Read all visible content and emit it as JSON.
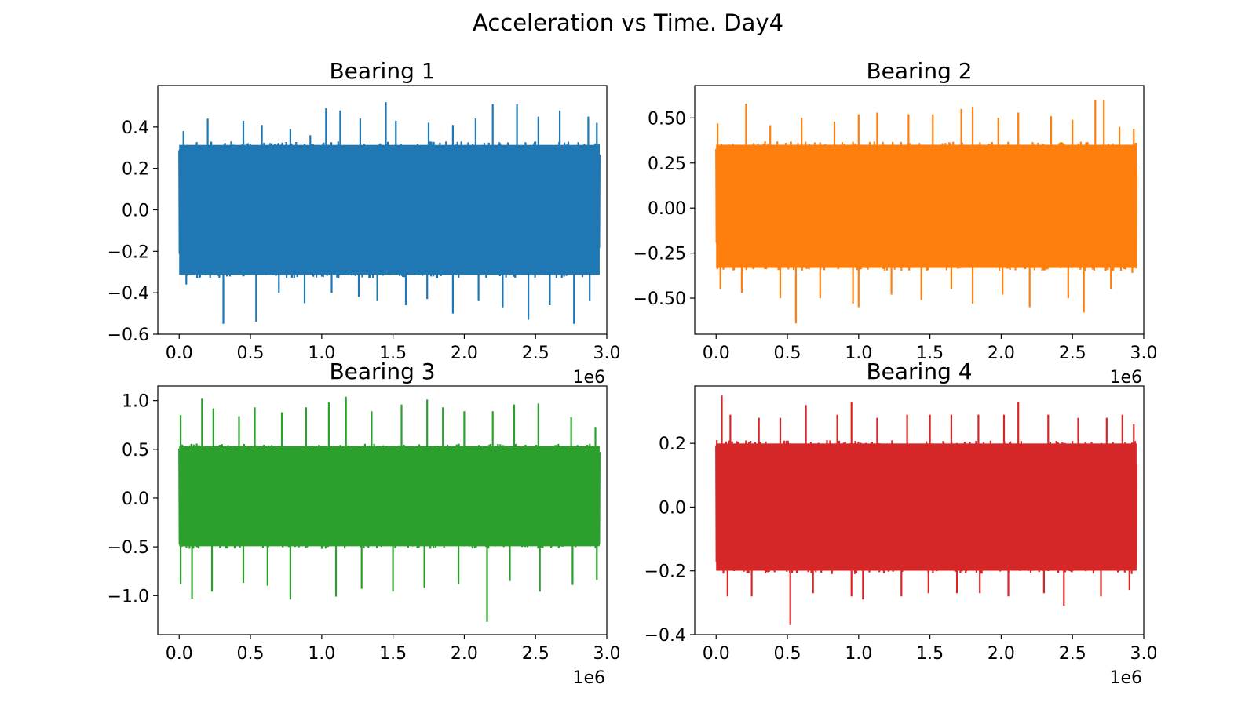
{
  "title": "Acceleration vs Time. Day4",
  "chart_data": [
    {
      "type": "line",
      "title": "Bearing 1",
      "color": "#1f77b4",
      "xlim": [
        -0.15,
        3.0
      ],
      "ylim": [
        -0.6,
        0.6
      ],
      "x_ticks": [
        0.0,
        0.5,
        1.0,
        1.5,
        2.0,
        2.5,
        3.0
      ],
      "x_tick_labels": [
        "0.0",
        "0.5",
        "1.0",
        "1.5",
        "2.0",
        "2.5",
        "3.0"
      ],
      "y_ticks": [
        -0.6,
        -0.4,
        -0.2,
        0.0,
        0.2,
        0.4
      ],
      "y_tick_labels": [
        "−0.6",
        "−0.4",
        "−0.2",
        "0.0",
        "0.2",
        "0.4"
      ],
      "x_offset_label": "1e6",
      "series": [
        {
          "x": [
            0.0,
            2.95
          ],
          "band_max": 0.33,
          "band_min": -0.33,
          "peaks": [
            [
              0.03,
              0.38
            ],
            [
              0.2,
              0.44
            ],
            [
              0.45,
              0.43
            ],
            [
              0.58,
              0.41
            ],
            [
              0.78,
              0.39
            ],
            [
              0.92,
              0.36
            ],
            [
              1.03,
              0.49
            ],
            [
              1.13,
              0.48
            ],
            [
              1.27,
              0.44
            ],
            [
              1.45,
              0.52
            ],
            [
              1.52,
              0.43
            ],
            [
              1.75,
              0.42
            ],
            [
              1.92,
              0.41
            ],
            [
              2.08,
              0.44
            ],
            [
              2.2,
              0.51
            ],
            [
              2.37,
              0.51
            ],
            [
              2.52,
              0.45
            ],
            [
              2.67,
              0.48
            ],
            [
              2.87,
              0.45
            ],
            [
              2.93,
              0.42
            ]
          ],
          "troughs": [
            [
              0.05,
              -0.36
            ],
            [
              0.31,
              -0.55
            ],
            [
              0.54,
              -0.54
            ],
            [
              0.7,
              -0.4
            ],
            [
              0.88,
              -0.45
            ],
            [
              1.07,
              -0.4
            ],
            [
              1.26,
              -0.42
            ],
            [
              1.39,
              -0.44
            ],
            [
              1.59,
              -0.46
            ],
            [
              1.74,
              -0.43
            ],
            [
              1.92,
              -0.5
            ],
            [
              2.1,
              -0.44
            ],
            [
              2.27,
              -0.47
            ],
            [
              2.45,
              -0.53
            ],
            [
              2.6,
              -0.46
            ],
            [
              2.77,
              -0.55
            ],
            [
              2.88,
              -0.44
            ]
          ]
        }
      ]
    },
    {
      "type": "line",
      "title": "Bearing 2",
      "color": "#ff7f0e",
      "xlim": [
        -0.15,
        3.0
      ],
      "ylim": [
        -0.7,
        0.68
      ],
      "x_ticks": [
        0.0,
        0.5,
        1.0,
        1.5,
        2.0,
        2.5,
        3.0
      ],
      "x_tick_labels": [
        "0.0",
        "0.5",
        "1.0",
        "1.5",
        "2.0",
        "2.5",
        "3.0"
      ],
      "y_ticks": [
        -0.5,
        -0.25,
        0.0,
        0.25,
        0.5
      ],
      "y_tick_labels": [
        "−0.50",
        "−0.25",
        "0.00",
        "0.25",
        "0.50"
      ],
      "x_offset_label": "1e6",
      "series": [
        {
          "x": [
            0.0,
            2.95
          ],
          "band_max": 0.37,
          "band_min": -0.35,
          "peaks": [
            [
              0.01,
              0.47
            ],
            [
              0.21,
              0.58
            ],
            [
              0.38,
              0.46
            ],
            [
              0.6,
              0.5
            ],
            [
              0.83,
              0.48
            ],
            [
              1.0,
              0.52
            ],
            [
              1.13,
              0.53
            ],
            [
              1.35,
              0.52
            ],
            [
              1.52,
              0.52
            ],
            [
              1.72,
              0.55
            ],
            [
              1.8,
              0.56
            ],
            [
              1.98,
              0.5
            ],
            [
              2.12,
              0.53
            ],
            [
              2.35,
              0.51
            ],
            [
              2.5,
              0.49
            ],
            [
              2.66,
              0.6
            ],
            [
              2.72,
              0.6
            ],
            [
              2.83,
              0.45
            ],
            [
              2.93,
              0.44
            ]
          ],
          "troughs": [
            [
              0.03,
              -0.45
            ],
            [
              0.18,
              -0.47
            ],
            [
              0.45,
              -0.5
            ],
            [
              0.56,
              -0.64
            ],
            [
              0.73,
              -0.5
            ],
            [
              0.96,
              -0.53
            ],
            [
              1.0,
              -0.55
            ],
            [
              1.23,
              -0.48
            ],
            [
              1.44,
              -0.51
            ],
            [
              1.65,
              -0.45
            ],
            [
              1.8,
              -0.53
            ],
            [
              2.01,
              -0.48
            ],
            [
              2.2,
              -0.55
            ],
            [
              2.47,
              -0.5
            ],
            [
              2.58,
              -0.58
            ],
            [
              2.77,
              -0.45
            ],
            [
              2.92,
              -0.36
            ]
          ]
        }
      ]
    },
    {
      "type": "line",
      "title": "Bearing 3",
      "color": "#2ca02c",
      "xlim": [
        -0.15,
        3.0
      ],
      "ylim": [
        -1.4,
        1.15
      ],
      "x_ticks": [
        0.0,
        0.5,
        1.0,
        1.5,
        2.0,
        2.5,
        3.0
      ],
      "x_tick_labels": [
        "0.0",
        "0.5",
        "1.0",
        "1.5",
        "2.0",
        "2.5",
        "3.0"
      ],
      "y_ticks": [
        -1.0,
        -0.5,
        0.0,
        0.5,
        1.0
      ],
      "y_tick_labels": [
        "−1.0",
        "−0.5",
        "0.0",
        "0.5",
        "1.0"
      ],
      "x_offset_label": "1e6",
      "series": [
        {
          "x": [
            0.0,
            2.95
          ],
          "band_max": 0.56,
          "band_min": -0.52,
          "peaks": [
            [
              0.01,
              0.85
            ],
            [
              0.16,
              1.02
            ],
            [
              0.24,
              0.92
            ],
            [
              0.42,
              0.84
            ],
            [
              0.53,
              0.93
            ],
            [
              0.72,
              0.88
            ],
            [
              0.89,
              0.93
            ],
            [
              1.05,
              0.98
            ],
            [
              1.17,
              1.04
            ],
            [
              1.35,
              0.89
            ],
            [
              1.56,
              0.96
            ],
            [
              1.74,
              1.01
            ],
            [
              1.85,
              0.93
            ],
            [
              2.0,
              0.89
            ],
            [
              2.2,
              0.89
            ],
            [
              2.35,
              0.96
            ],
            [
              2.52,
              0.97
            ],
            [
              2.75,
              0.83
            ],
            [
              2.92,
              0.73
            ]
          ],
          "troughs": [
            [
              0.01,
              -0.88
            ],
            [
              0.09,
              -1.03
            ],
            [
              0.23,
              -0.96
            ],
            [
              0.45,
              -0.87
            ],
            [
              0.62,
              -0.9
            ],
            [
              0.78,
              -1.04
            ],
            [
              1.1,
              -1.01
            ],
            [
              1.28,
              -0.93
            ],
            [
              1.5,
              -0.96
            ],
            [
              1.72,
              -0.92
            ],
            [
              1.96,
              -0.88
            ],
            [
              2.16,
              -1.27
            ],
            [
              2.32,
              -0.85
            ],
            [
              2.53,
              -0.96
            ],
            [
              2.76,
              -0.89
            ],
            [
              2.93,
              -0.84
            ]
          ]
        }
      ]
    },
    {
      "type": "line",
      "title": "Bearing 4",
      "color": "#d62728",
      "xlim": [
        -0.15,
        3.0
      ],
      "ylim": [
        -0.4,
        0.38
      ],
      "x_ticks": [
        0.0,
        0.5,
        1.0,
        1.5,
        2.0,
        2.5,
        3.0
      ],
      "x_tick_labels": [
        "0.0",
        "0.5",
        "1.0",
        "1.5",
        "2.0",
        "2.5",
        "3.0"
      ],
      "y_ticks": [
        -0.4,
        -0.2,
        0.0,
        0.2
      ],
      "y_tick_labels": [
        "−0.4",
        "−0.2",
        "0.0",
        "0.2"
      ],
      "x_offset_label": "1e6",
      "series": [
        {
          "x": [
            0.0,
            2.95
          ],
          "band_max": 0.21,
          "band_min": -0.21,
          "peaks": [
            [
              0.04,
              0.35
            ],
            [
              0.1,
              0.29
            ],
            [
              0.3,
              0.28
            ],
            [
              0.45,
              0.28
            ],
            [
              0.63,
              0.32
            ],
            [
              0.85,
              0.29
            ],
            [
              0.95,
              0.33
            ],
            [
              1.13,
              0.28
            ],
            [
              1.34,
              0.29
            ],
            [
              1.5,
              0.29
            ],
            [
              1.65,
              0.29
            ],
            [
              1.84,
              0.29
            ],
            [
              2.02,
              0.29
            ],
            [
              2.12,
              0.33
            ],
            [
              2.33,
              0.29
            ],
            [
              2.54,
              0.28
            ],
            [
              2.74,
              0.28
            ],
            [
              2.85,
              0.29
            ],
            [
              2.93,
              0.26
            ]
          ],
          "troughs": [
            [
              0.08,
              -0.28
            ],
            [
              0.25,
              -0.28
            ],
            [
              0.52,
              -0.37
            ],
            [
              0.68,
              -0.27
            ],
            [
              0.95,
              -0.28
            ],
            [
              1.03,
              -0.29
            ],
            [
              1.3,
              -0.28
            ],
            [
              1.49,
              -0.27
            ],
            [
              1.69,
              -0.27
            ],
            [
              1.85,
              -0.27
            ],
            [
              2.05,
              -0.28
            ],
            [
              2.3,
              -0.27
            ],
            [
              2.44,
              -0.31
            ],
            [
              2.7,
              -0.28
            ],
            [
              2.9,
              -0.26
            ]
          ]
        }
      ]
    }
  ]
}
